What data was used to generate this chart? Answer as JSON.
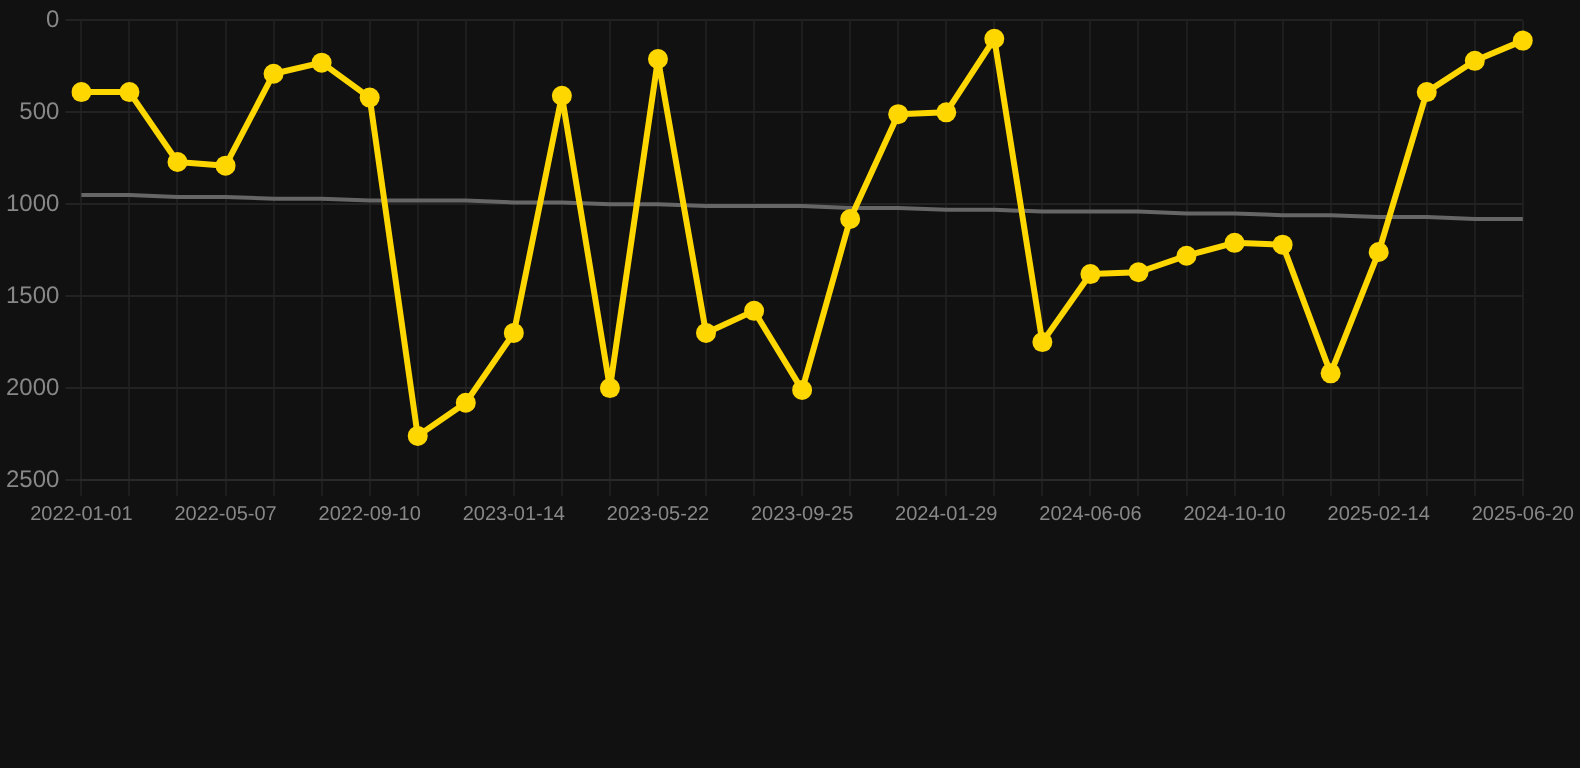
{
  "chart_data": {
    "type": "line",
    "categories": [
      "2022-01-01",
      null,
      null,
      "2022-05-07",
      null,
      null,
      "2022-09-10",
      null,
      null,
      "2023-01-14",
      null,
      null,
      "2023-05-22",
      null,
      null,
      "2023-09-25",
      null,
      null,
      "2024-01-29",
      null,
      null,
      "2024-06-06",
      null,
      null,
      "2024-10-10",
      null,
      null,
      "2025-02-14",
      null,
      null,
      "2025-06-20"
    ],
    "series": [
      {
        "color": "#ffd700",
        "marker": "circle",
        "values": [
          390,
          390,
          770,
          790,
          290,
          230,
          420,
          2260,
          2080,
          1700,
          410,
          2000,
          210,
          1700,
          1580,
          2010,
          1080,
          510,
          500,
          100,
          1750,
          1380,
          1370,
          1280,
          1210,
          1220,
          1920,
          1260,
          390,
          220,
          110
        ]
      },
      {
        "color": "#666666",
        "marker": "none",
        "values": [
          950,
          950,
          960,
          960,
          970,
          970,
          980,
          980,
          980,
          990,
          990,
          1000,
          1000,
          1010,
          1010,
          1010,
          1020,
          1020,
          1030,
          1030,
          1040,
          1040,
          1040,
          1050,
          1050,
          1060,
          1060,
          1070,
          1070,
          1080,
          1080
        ]
      }
    ],
    "ylim": [
      2500,
      0
    ],
    "yticks": [
      0,
      500,
      1000,
      1500,
      2000,
      2500
    ],
    "grid": true,
    "legend": false
  }
}
